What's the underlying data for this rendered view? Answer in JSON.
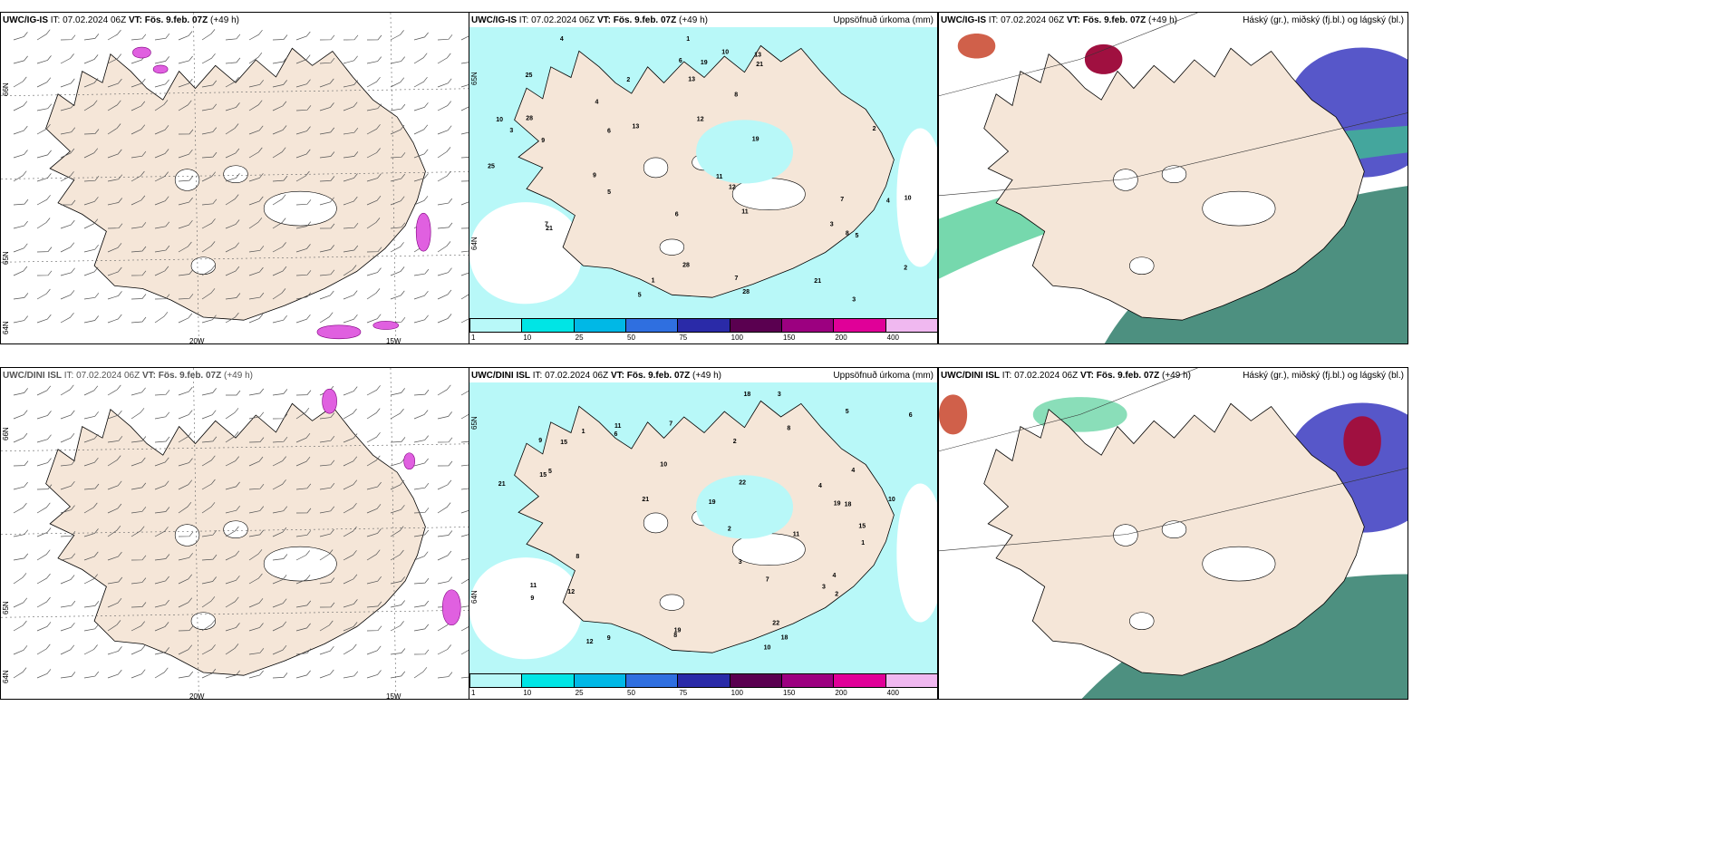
{
  "panels": [
    {
      "id": "p1",
      "model": "UWC/IG-IS",
      "it_label": "IT:",
      "it": "07.02.2024 06Z",
      "vt_label": "VT:",
      "vt": "Fös. 9.feb. 07Z",
      "lead": "(+49 h)",
      "right": "",
      "lat_labels": [
        "66N",
        "65N",
        "64N"
      ],
      "lon_labels": [
        "20W",
        "15W"
      ]
    },
    {
      "id": "p2",
      "model": "UWC/IG-IS",
      "it_label": "IT:",
      "it": "07.02.2024 06Z",
      "vt_label": "VT:",
      "vt": "Fös. 9.feb. 07Z",
      "lead": "(+49 h)",
      "right": "Uppsöfnuð úrkoma (mm)",
      "lat_labels": [
        "65N",
        "64N"
      ],
      "lon_labels": []
    },
    {
      "id": "p3",
      "model": "UWC/IG-IS",
      "it_label": "IT:",
      "it": "07.02.2024 06Z",
      "vt_label": "VT:",
      "vt": "Fös. 9.feb. 07Z",
      "lead": "(+49 h)",
      "right": "Háský (gr.), miðský (fj.bl.) og lágský (bl.)",
      "lat_labels": [],
      "lon_labels": []
    },
    {
      "id": "p4",
      "model": "UWC/DINI ISL",
      "it_label": "IT:",
      "it": "07.02.2024 06Z",
      "vt_label": "VT:",
      "vt": "Fös. 9.feb. 07Z",
      "lead": "(+49 h)",
      "right": "",
      "lat_labels": [
        "66N",
        "65N",
        "64N"
      ],
      "lon_labels": [
        "20W",
        "15W"
      ]
    },
    {
      "id": "p5",
      "model": "UWC/DINI ISL",
      "it_label": "IT:",
      "it": "07.02.2024 06Z",
      "vt_label": "VT:",
      "vt": "Fös. 9.feb. 07Z",
      "lead": "(+49 h)",
      "right": "Uppsöfnuð úrkoma (mm)",
      "lat_labels": [
        "65N",
        "64N"
      ],
      "lon_labels": []
    },
    {
      "id": "p6",
      "model": "UWC/DINI ISL",
      "it_label": "IT:",
      "it": "07.02.2024 06Z",
      "vt_label": "VT:",
      "vt": "Fös. 9.feb. 07Z",
      "lead": "(+49 h)",
      "right": "Háský (gr.), miðský (fj.bl.) og lágský (bl.)",
      "lat_labels": [],
      "lon_labels": []
    }
  ],
  "precip_legend": {
    "ticks": [
      "1",
      "10",
      "25",
      "50",
      "75",
      "100",
      "150",
      "200",
      "400"
    ],
    "colors": [
      "#b8f8f8",
      "#00e5e5",
      "#00b8e6",
      "#2f6fe0",
      "#2a2aa8",
      "#5a0050",
      "#9c0080",
      "#e00098",
      "#f0b8f0"
    ]
  },
  "precip_values_top": [
    "21",
    "28",
    "6",
    "2",
    "4",
    "3",
    "5",
    "7",
    "10",
    "13",
    "12",
    "9",
    "8",
    "11",
    "19",
    "25",
    "1"
  ],
  "precip_values_bottom": [
    "3",
    "8",
    "15",
    "19",
    "2",
    "4",
    "11",
    "9",
    "10",
    "18",
    "12",
    "21",
    "22",
    "1",
    "6",
    "5",
    "7"
  ],
  "colors": {
    "land": "#f5e6d8",
    "precip_light": "#b8f8f8",
    "wind_barb": "#555555",
    "coast": "#000000",
    "cloud_high": "#2e7d6a",
    "cloud_mid": "#3a3ac0",
    "cloud_low": "#a01040",
    "snow": "#e060e0"
  }
}
